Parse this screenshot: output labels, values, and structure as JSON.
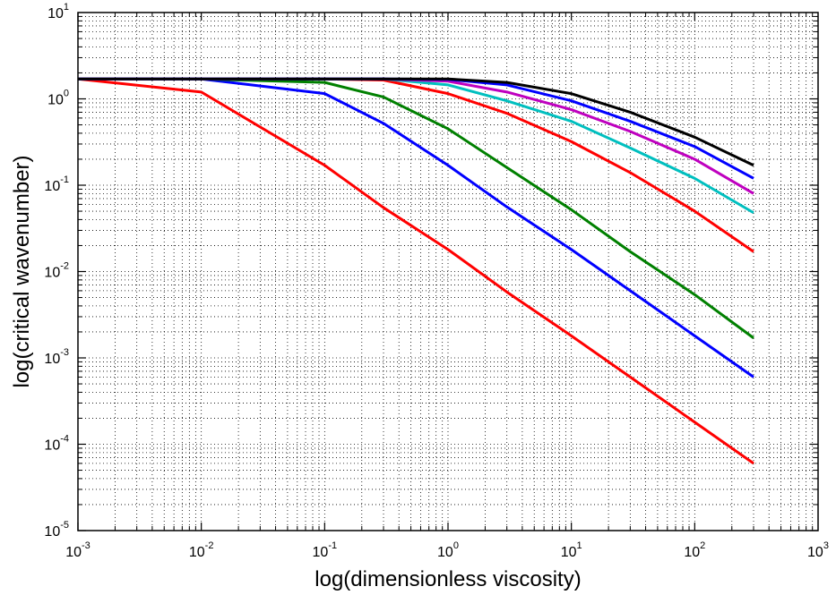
{
  "chart_data": {
    "type": "line",
    "title": "",
    "xlabel": "log(dimensionless viscosity)",
    "ylabel": "log(critical wavenumber)",
    "xscale": "log",
    "yscale": "log",
    "xlim": [
      0.001,
      1000
    ],
    "ylim": [
      1e-05,
      10
    ],
    "grid": true,
    "grid_style": "dotted",
    "legend": "none",
    "x_tick_labels": [
      "10^-3",
      "10^-2",
      "10^-1",
      "10^0",
      "10^1",
      "10^2",
      "10^3"
    ],
    "y_tick_labels": [
      "10^-5",
      "10^-4",
      "10^-3",
      "10^-2",
      "10^-1",
      "10^0",
      "10^1"
    ],
    "x": [
      0.001,
      0.01,
      0.1,
      0.3,
      1,
      3,
      10,
      30,
      100,
      300
    ],
    "series": [
      {
        "color": "#ff0000",
        "values": [
          1.7,
          1.2,
          0.17,
          0.055,
          0.018,
          0.0058,
          0.0018,
          0.0006,
          0.00018,
          6e-05
        ]
      },
      {
        "color": "#0000ff",
        "values": [
          1.7,
          1.7,
          1.15,
          0.52,
          0.17,
          0.056,
          0.018,
          0.006,
          0.0018,
          0.0006
        ]
      },
      {
        "color": "#008000",
        "values": [
          1.7,
          1.7,
          1.55,
          1.05,
          0.45,
          0.16,
          0.052,
          0.017,
          0.0054,
          0.0017
        ]
      },
      {
        "color": "#ff0000",
        "values": [
          1.7,
          1.7,
          1.7,
          1.65,
          1.15,
          0.68,
          0.32,
          0.14,
          0.05,
          0.017
        ]
      },
      {
        "color": "#00bfbf",
        "values": [
          1.7,
          1.7,
          1.7,
          1.7,
          1.45,
          0.95,
          0.55,
          0.27,
          0.12,
          0.048
        ]
      },
      {
        "color": "#bf00bf",
        "values": [
          1.7,
          1.7,
          1.7,
          1.7,
          1.6,
          1.2,
          0.75,
          0.42,
          0.2,
          0.08
        ]
      },
      {
        "color": "#0000ff",
        "values": [
          1.7,
          1.7,
          1.7,
          1.7,
          1.68,
          1.45,
          0.95,
          0.55,
          0.28,
          0.12
        ]
      },
      {
        "color": "#000000",
        "values": [
          1.7,
          1.7,
          1.7,
          1.7,
          1.7,
          1.55,
          1.15,
          0.7,
          0.36,
          0.17
        ]
      }
    ]
  }
}
